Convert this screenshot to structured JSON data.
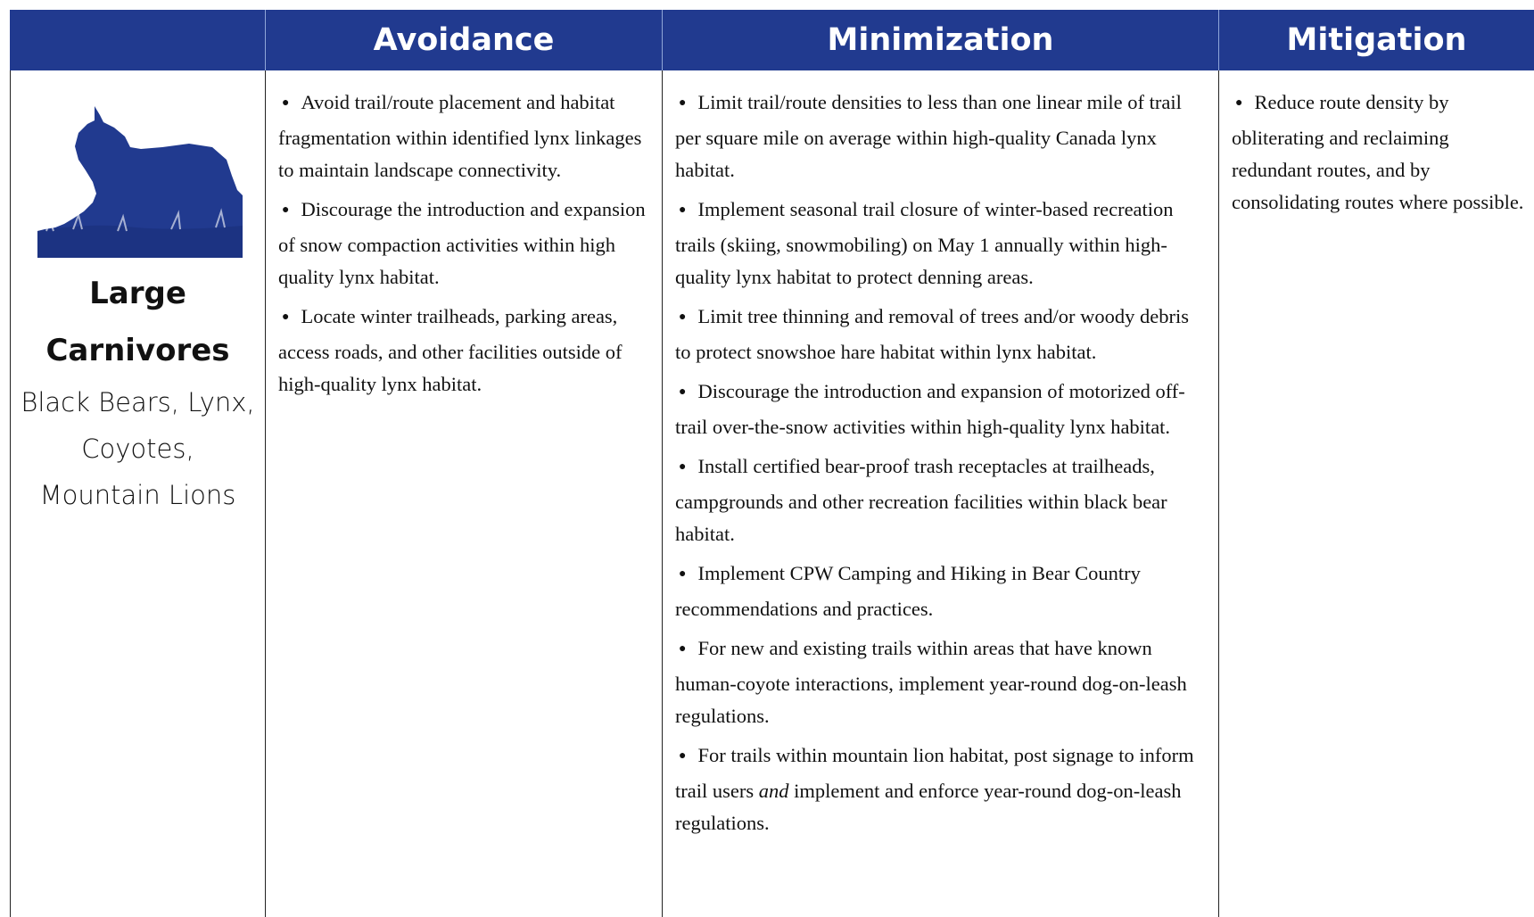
{
  "header": {
    "columns": [
      "Avoidance",
      "Minimization",
      "Mitigation"
    ]
  },
  "row": {
    "title": "Large Carnivores",
    "species": "Black Bears, Lynx, Coyotes, Mountain Lions",
    "avoidance": [
      [
        "Avoid trail/route placement and habitat fragmentation within identified lynx linkages to maintain landscape connectivity."
      ],
      [
        "Discourage the introduction and expansion of snow compaction activities within high quality lynx habitat."
      ],
      [
        "Locate winter trailheads, parking areas, access roads, and other facilities outside of high-quality lynx habitat."
      ]
    ],
    "minimization": [
      [
        "Limit trail/route densities to less than one linear mile of trail per square mile on average within high-quality Canada lynx habitat."
      ],
      [
        "Implement seasonal trail closure of winter-based recreation trails (skiing, snowmobiling) on May 1 annually within high-quality lynx habitat to protect denning areas."
      ],
      [
        "Limit tree thinning and removal of trees and/or woody debris to protect snowshoe hare habitat within lynx habitat."
      ],
      [
        "Discourage the introduction and expansion of motorized off-trail over-the-snow activities within high-quality lynx habitat."
      ],
      [
        "Install certified bear-proof trash receptacles at trailheads, campgrounds and other recreation facilities within black bear habitat."
      ],
      [
        "Implement CPW Camping and Hiking in Bear Country recommendations and practices."
      ],
      [
        "For new and existing trails within areas that have known human-coyote interactions, implement year-round dog-on-leash regulations."
      ],
      [
        "For trails within mountain lion habitat, post signage to inform trail users ",
        "and",
        " implement and enforce year-round dog-on-leash regulations."
      ]
    ],
    "mitigation": [
      [
        "Reduce route density by obliterating and reclaiming redundant routes, and by consolidating routes where possible."
      ]
    ]
  }
}
